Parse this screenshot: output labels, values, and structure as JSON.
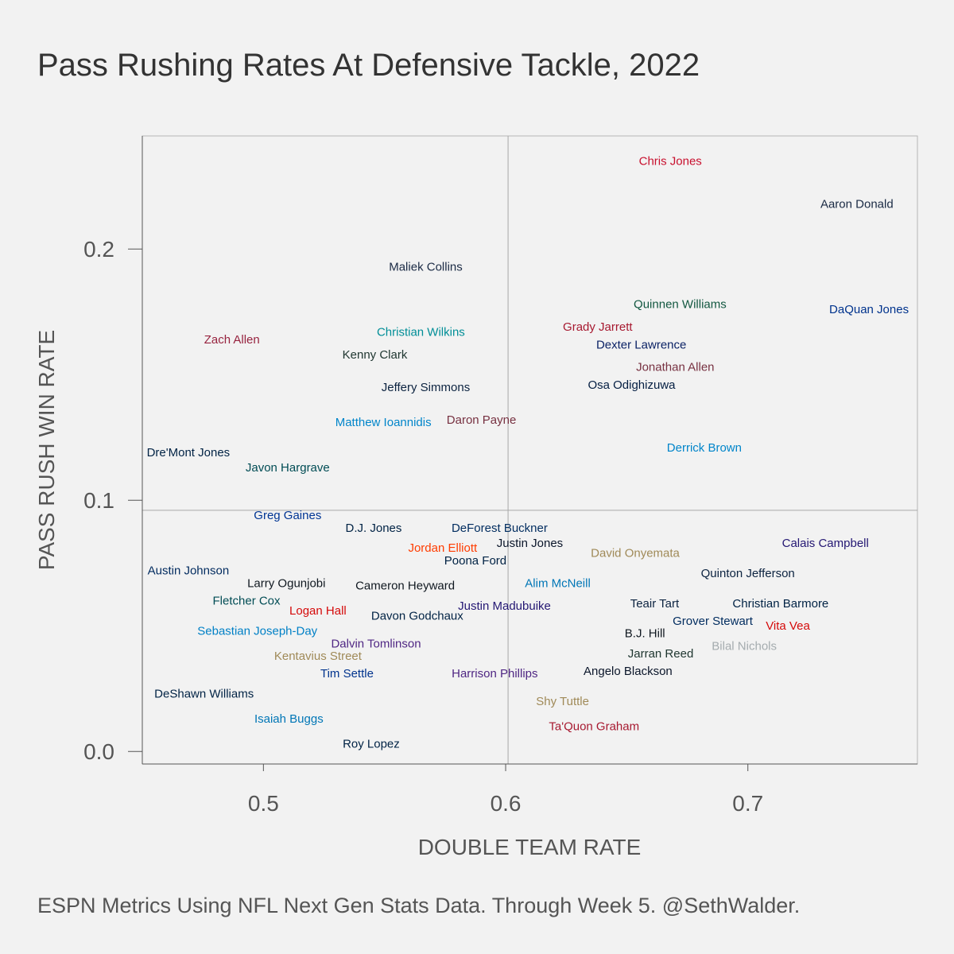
{
  "chart_data": {
    "type": "scatter",
    "title": "Pass Rushing Rates At Defensive Tackle, 2022",
    "xlabel": "DOUBLE TEAM RATE",
    "ylabel": "PASS RUSH WIN RATE",
    "caption": "ESPN Metrics Using NFL Next Gen Stats Data. Through Week 5. @SethWalder.",
    "xlim": [
      0.45,
      0.77
    ],
    "ylim": [
      -0.005,
      0.245
    ],
    "xticks": [
      0.5,
      0.6,
      0.7
    ],
    "xtick_labels": [
      "0.5",
      "0.6",
      "0.7"
    ],
    "yticks": [
      0.0,
      0.1,
      0.2
    ],
    "ytick_labels": [
      "0.0",
      "0.1",
      "0.2"
    ],
    "reference_lines": {
      "x": 0.601,
      "y": 0.096
    },
    "points": [
      {
        "name": "Chris Jones",
        "x": 0.668,
        "y": 0.235,
        "color": "#c8102e"
      },
      {
        "name": "Aaron Donald",
        "x": 0.745,
        "y": 0.218,
        "color": "#1a2a44"
      },
      {
        "name": "Maliek Collins",
        "x": 0.567,
        "y": 0.193,
        "color": "#1a2a44"
      },
      {
        "name": "Quinnen Williams",
        "x": 0.672,
        "y": 0.178,
        "color": "#125740"
      },
      {
        "name": "DaQuan Jones",
        "x": 0.75,
        "y": 0.176,
        "color": "#00338d"
      },
      {
        "name": "Grady Jarrett",
        "x": 0.638,
        "y": 0.169,
        "color": "#a71930"
      },
      {
        "name": "Christian Wilkins",
        "x": 0.565,
        "y": 0.167,
        "color": "#008e97"
      },
      {
        "name": "Zach Allen",
        "x": 0.487,
        "y": 0.164,
        "color": "#97233f"
      },
      {
        "name": "Dexter Lawrence",
        "x": 0.656,
        "y": 0.162,
        "color": "#0b2265"
      },
      {
        "name": "Kenny Clark",
        "x": 0.546,
        "y": 0.158,
        "color": "#203731"
      },
      {
        "name": "Jonathan Allen",
        "x": 0.67,
        "y": 0.153,
        "color": "#773141"
      },
      {
        "name": "Jeffery Simmons",
        "x": 0.567,
        "y": 0.145,
        "color": "#0c2340"
      },
      {
        "name": "Osa Odighizuwa",
        "x": 0.652,
        "y": 0.146,
        "color": "#041e42"
      },
      {
        "name": "Daron Payne",
        "x": 0.59,
        "y": 0.132,
        "color": "#773141"
      },
      {
        "name": "Matthew Ioannidis",
        "x": 0.5495,
        "y": 0.131,
        "color": "#0085ca"
      },
      {
        "name": "Derrick Brown",
        "x": 0.682,
        "y": 0.121,
        "color": "#0085ca"
      },
      {
        "name": "Dre'Mont Jones",
        "x": 0.469,
        "y": 0.119,
        "color": "#002244"
      },
      {
        "name": "Javon Hargrave",
        "x": 0.51,
        "y": 0.113,
        "color": "#004c54"
      },
      {
        "name": "Greg Gaines",
        "x": 0.51,
        "y": 0.094,
        "color": "#003594"
      },
      {
        "name": "D.J. Jones",
        "x": 0.5455,
        "y": 0.089,
        "color": "#002244"
      },
      {
        "name": "DeForest Buckner",
        "x": 0.5975,
        "y": 0.089,
        "color": "#002c5f"
      },
      {
        "name": "Justin Jones",
        "x": 0.61,
        "y": 0.083,
        "color": "#0b162a"
      },
      {
        "name": "Calais Campbell",
        "x": 0.732,
        "y": 0.083,
        "color": "#241773"
      },
      {
        "name": "Jordan Elliott",
        "x": 0.574,
        "y": 0.081,
        "color": "#ff3c00"
      },
      {
        "name": "David Onyemata",
        "x": 0.6535,
        "y": 0.079,
        "color": "#a08a58"
      },
      {
        "name": "Poona Ford",
        "x": 0.5875,
        "y": 0.076,
        "color": "#002244"
      },
      {
        "name": "Austin Johnson",
        "x": 0.469,
        "y": 0.072,
        "color": "#002a5e"
      },
      {
        "name": "Quinton Jefferson",
        "x": 0.7,
        "y": 0.071,
        "color": "#0c2340"
      },
      {
        "name": "Alim McNeill",
        "x": 0.6215,
        "y": 0.067,
        "color": "#0076b6"
      },
      {
        "name": "Larry Ogunjobi",
        "x": 0.5095,
        "y": 0.067,
        "color": "#101820"
      },
      {
        "name": "Cameron Heyward",
        "x": 0.5585,
        "y": 0.066,
        "color": "#101820"
      },
      {
        "name": "Fletcher Cox",
        "x": 0.493,
        "y": 0.06,
        "color": "#004c54"
      },
      {
        "name": "Teair Tart",
        "x": 0.6615,
        "y": 0.059,
        "color": "#0c2340"
      },
      {
        "name": "Christian Barmore",
        "x": 0.7135,
        "y": 0.059,
        "color": "#002244"
      },
      {
        "name": "Justin Madubuike",
        "x": 0.5995,
        "y": 0.058,
        "color": "#241773"
      },
      {
        "name": "Logan Hall",
        "x": 0.5225,
        "y": 0.056,
        "color": "#d50a0a"
      },
      {
        "name": "Davon Godchaux",
        "x": 0.5635,
        "y": 0.054,
        "color": "#002244"
      },
      {
        "name": "Grover Stewart",
        "x": 0.6855,
        "y": 0.052,
        "color": "#002c5f"
      },
      {
        "name": "Sebastian Joseph-Day",
        "x": 0.4975,
        "y": 0.048,
        "color": "#0080c6"
      },
      {
        "name": "B.J. Hill",
        "x": 0.6575,
        "y": 0.047,
        "color": "#101820"
      },
      {
        "name": "Vita Vea",
        "x": 0.7165,
        "y": 0.05,
        "color": "#d50a0a"
      },
      {
        "name": "Dalvin Tomlinson",
        "x": 0.5465,
        "y": 0.043,
        "color": "#4f2683"
      },
      {
        "name": "Bilal Nichols",
        "x": 0.6985,
        "y": 0.042,
        "color": "#a5acaf"
      },
      {
        "name": "Kentavius Street",
        "x": 0.5225,
        "y": 0.038,
        "color": "#a08a58"
      },
      {
        "name": "Jarran Reed",
        "x": 0.664,
        "y": 0.039,
        "color": "#203731"
      },
      {
        "name": "Tim Settle",
        "x": 0.5345,
        "y": 0.031,
        "color": "#00338d"
      },
      {
        "name": "Harrison Phillips",
        "x": 0.5955,
        "y": 0.031,
        "color": "#4f2683"
      },
      {
        "name": "Angelo Blackson",
        "x": 0.6505,
        "y": 0.032,
        "color": "#0b162a"
      },
      {
        "name": "DeShawn Williams",
        "x": 0.4755,
        "y": 0.023,
        "color": "#002244"
      },
      {
        "name": "Shy Tuttle",
        "x": 0.6235,
        "y": 0.02,
        "color": "#a08a58"
      },
      {
        "name": "Isaiah Buggs",
        "x": 0.5105,
        "y": 0.013,
        "color": "#0076b6"
      },
      {
        "name": "Ta'Quon Graham",
        "x": 0.6365,
        "y": 0.01,
        "color": "#a71930"
      },
      {
        "name": "Roy Lopez",
        "x": 0.5445,
        "y": 0.003,
        "color": "#002244"
      }
    ]
  }
}
